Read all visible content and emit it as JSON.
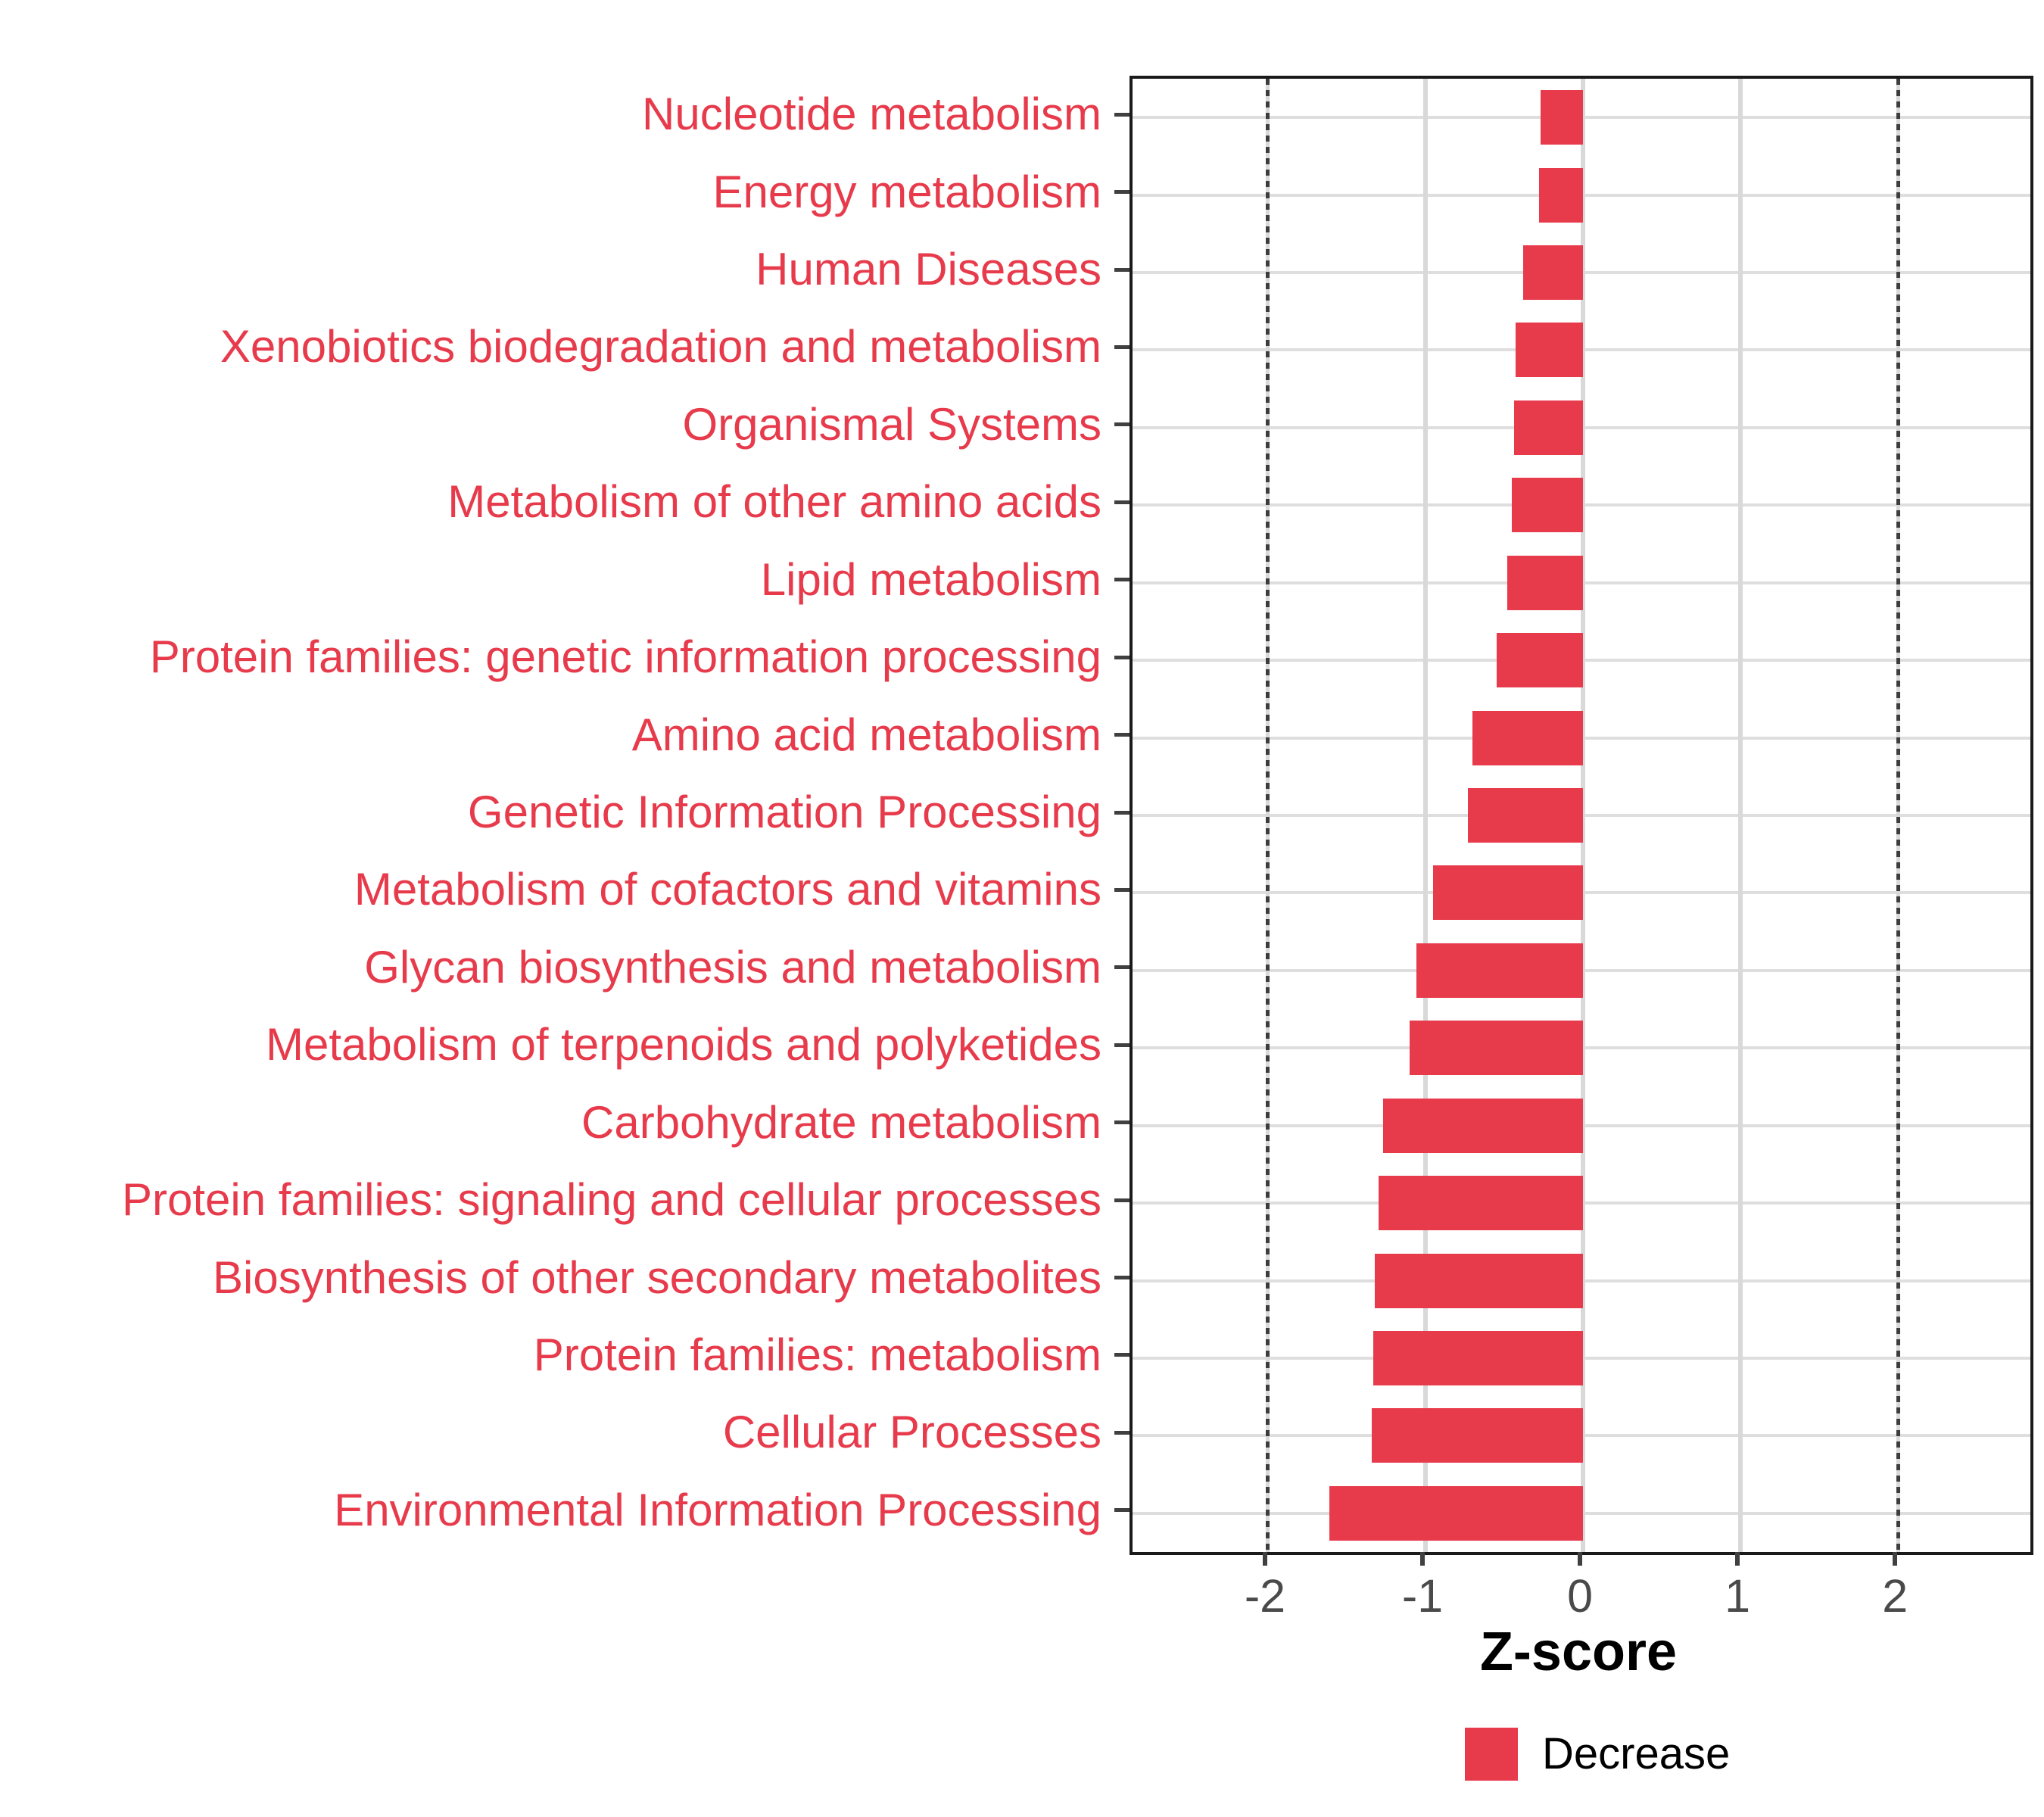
{
  "chart_data": {
    "type": "bar",
    "orientation": "horizontal",
    "title": "",
    "xlabel": "Z-score",
    "ylabel": "",
    "categories": [
      "Nucleotide metabolism",
      "Energy metabolism",
      "Human Diseases",
      "Xenobiotics biodegradation and metabolism",
      "Organismal Systems",
      "Metabolism of other amino acids",
      "Lipid metabolism",
      "Protein families: genetic information processing",
      "Amino acid metabolism",
      "Genetic Information Processing",
      "Metabolism of cofactors and vitamins",
      "Glycan biosynthesis and metabolism",
      "Metabolism of terpenoids and polyketides",
      "Carbohydrate metabolism",
      "Protein families: signaling and cellular processes",
      "Biosynthesis of other secondary metabolites",
      "Protein families: metabolism",
      "Cellular Processes",
      "Environmental Information Processing"
    ],
    "series": [
      {
        "name": "Decrease",
        "values": [
          -0.27,
          -0.28,
          -0.38,
          -0.43,
          -0.44,
          -0.45,
          -0.48,
          -0.55,
          -0.7,
          -0.73,
          -0.95,
          -1.06,
          -1.1,
          -1.27,
          -1.3,
          -1.32,
          -1.33,
          -1.34,
          -1.61
        ]
      }
    ],
    "xlim": [
      -2.86,
      2.84
    ],
    "x_ticks": [
      -2,
      -1,
      0,
      1,
      2
    ],
    "x_tick_labels": [
      "-2",
      "-1",
      "0",
      "1",
      "2"
    ],
    "solid_gridlines_x": [
      -1,
      0,
      1
    ],
    "dotted_vlines_x": [
      -2,
      2
    ],
    "grid": true,
    "legend_position": "bottom",
    "legend": [
      {
        "label": "Decrease",
        "color": "#E73B4C"
      }
    ],
    "colors": {
      "bar": "#E73B4C",
      "category_label": "#E73B4C",
      "axis_tick_label": "#4a4a4a",
      "axis_line": "#1a1a1a",
      "gridline": "#dedede",
      "dotted_line": "#3d3d3d"
    }
  }
}
